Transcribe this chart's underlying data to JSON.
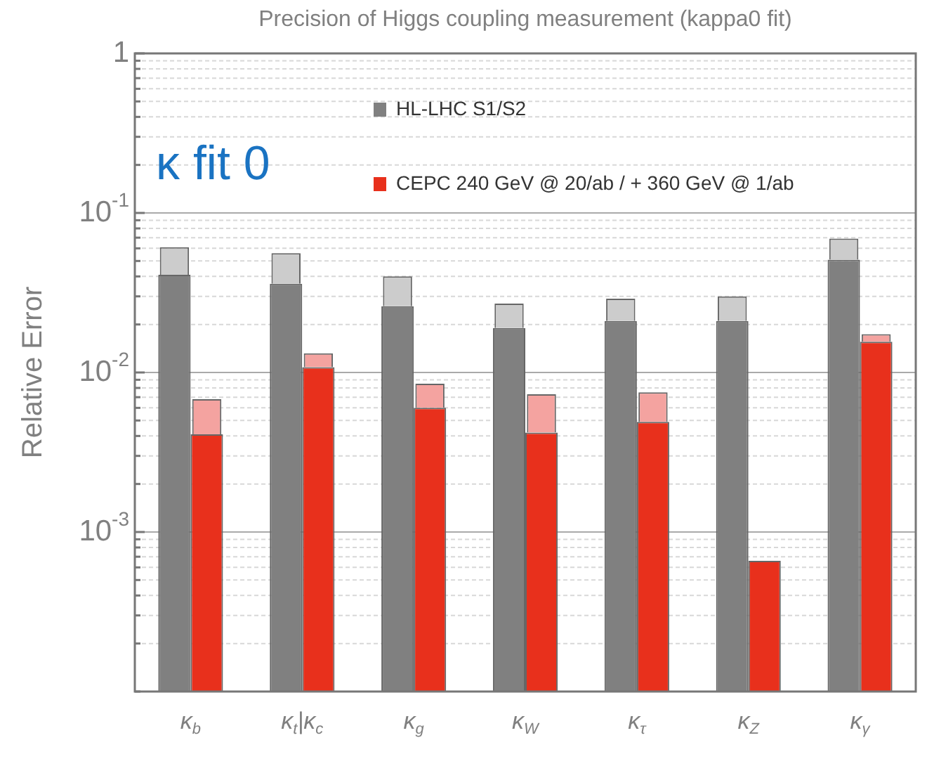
{
  "chart_data": {
    "type": "bar",
    "title": "Precision of Higgs coupling measurement (kappa0 fit)",
    "ylabel": "Relative Error",
    "categories": [
      "κ$_{b}$",
      "κ$_{t}$|κ$_{c}$",
      "κ$_{g}$",
      "κ$_{W}$",
      "κ$_{τ}$",
      "κ$_{Z}$",
      "κ$_{γ}$"
    ],
    "series": [
      {
        "name": "HL-LHC S1/S2",
        "color": "#808080",
        "values": [
          0.041,
          0.036,
          0.026,
          0.019,
          0.021,
          0.021,
          0.051
        ]
      },
      {
        "color": "#cccccc",
        "base": [
          0.041,
          0.036,
          0.026,
          0.019,
          0.021,
          0.021,
          0.051
        ],
        "values": [
          0.02,
          0.02,
          0.014,
          0.008,
          0.008,
          0.009,
          0.018
        ]
      },
      {
        "name": "CEPC 240 GeV @ 20/ab / + 360 GeV @ 1/ab",
        "color": "#e8301c",
        "values": [
          0.0041,
          0.0108,
          0.006,
          0.0042,
          0.0049,
          0.00066,
          0.0156
        ]
      },
      {
        "color": "#f4a3a0",
        "base": [
          0.0041,
          0.0108,
          0.006,
          0.0042,
          0.0049,
          null,
          0.0156
        ],
        "values": [
          0.0027,
          0.0024,
          0.0025,
          0.0031,
          0.0026,
          null,
          0.0018
        ]
      }
    ],
    "log": "y",
    "ylim": [
      0.0001,
      1
    ],
    "yticks": [
      {
        "value": 0.0001,
        "label": null
      },
      {
        "value": 0.0002,
        "label": null
      },
      {
        "value": 0.0003,
        "label": null
      },
      {
        "value": 0.0004,
        "label": null
      },
      {
        "value": 0.0005,
        "label": null
      },
      {
        "value": 0.0006,
        "label": null
      },
      {
        "value": 0.0007,
        "label": null
      },
      {
        "value": 0.0008,
        "label": null
      },
      {
        "value": 0.0009,
        "label": null
      },
      {
        "value": 0.001,
        "label": "10$^{-3}$"
      },
      {
        "value": 0.002,
        "label": null
      },
      {
        "value": 0.003,
        "label": null
      },
      {
        "value": 0.004,
        "label": null
      },
      {
        "value": 0.005,
        "label": null
      },
      {
        "value": 0.006,
        "label": null
      },
      {
        "value": 0.007,
        "label": null
      },
      {
        "value": 0.008,
        "label": null
      },
      {
        "value": 0.009,
        "label": null
      },
      {
        "value": 0.01,
        "label": "10$^{-2}$"
      },
      {
        "value": 0.02,
        "label": null
      },
      {
        "value": 0.03,
        "label": null
      },
      {
        "value": 0.04,
        "label": null
      },
      {
        "value": 0.05,
        "label": null
      },
      {
        "value": 0.06,
        "label": null
      },
      {
        "value": 0.07,
        "label": null
      },
      {
        "value": 0.08,
        "label": null
      },
      {
        "value": 0.09,
        "label": null
      },
      {
        "value": 0.1,
        "label": "10$^{-1}$"
      },
      {
        "value": 0.2,
        "label": null
      },
      {
        "value": 0.3,
        "label": null
      },
      {
        "value": 0.4,
        "label": null
      },
      {
        "value": 0.5,
        "label": null
      },
      {
        "value": 0.6,
        "label": null
      },
      {
        "value": 0.7,
        "label": null
      },
      {
        "value": 0.8,
        "label": null
      },
      {
        "value": 0.9,
        "label": null
      },
      {
        "value": 1,
        "label": "1"
      }
    ],
    "grid": true,
    "legend": "top",
    "annotations": [
      "κ fit 0"
    ]
  }
}
